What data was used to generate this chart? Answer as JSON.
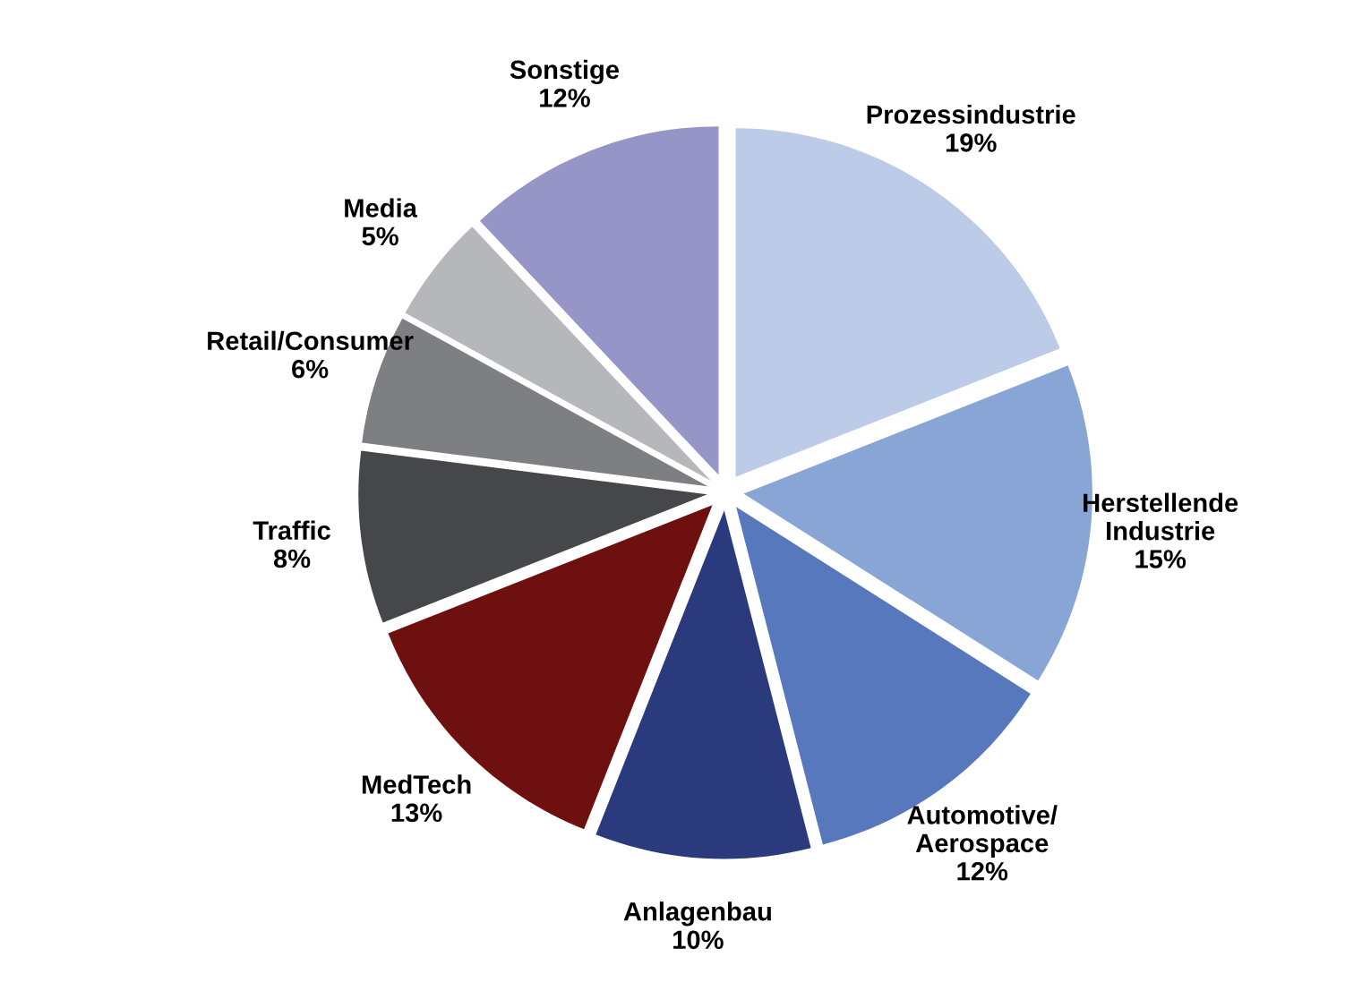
{
  "chart_data": {
    "type": "pie",
    "categories": [
      "Prozessindustrie",
      "Herstellende\nIndustrie",
      "Automotive/\nAerospace",
      "Anlagenbau",
      "MedTech",
      "Traffic",
      "Retail/Consumer",
      "Media",
      "Sonstige"
    ],
    "values": [
      19,
      15,
      12,
      10,
      13,
      8,
      6,
      5,
      12
    ],
    "value_labels": [
      "19%",
      "15%",
      "12%",
      "10%",
      "13%",
      "8%",
      "6%",
      "5%",
      "12%"
    ],
    "colors": [
      "#bccbe8",
      "#89a5d6",
      "#5878bd",
      "#2b3a7d",
      "#6e0f10",
      "#46474a",
      "#7e7f83",
      "#b5b7ba",
      "#9595c8"
    ],
    "legend": false
  }
}
